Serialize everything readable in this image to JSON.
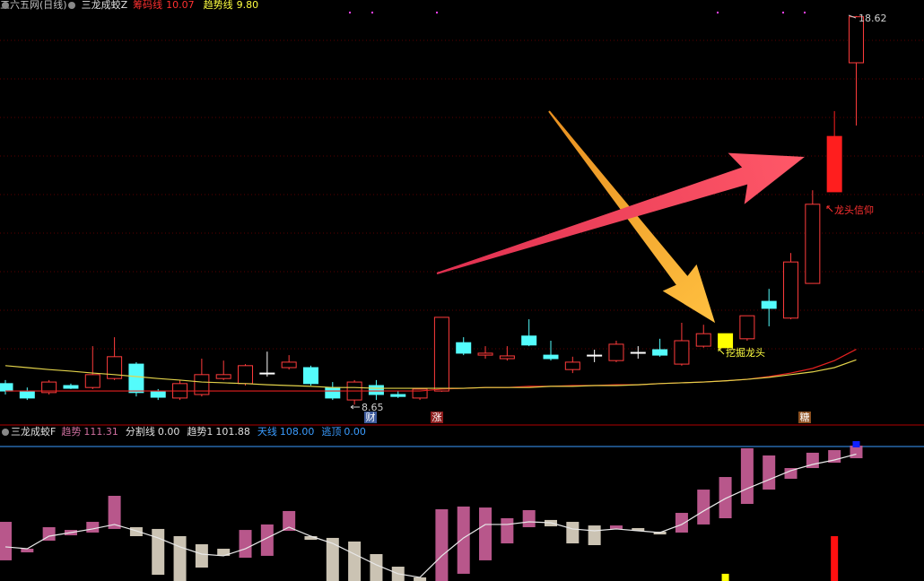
{
  "header": {
    "title": "三六五网(日线)",
    "indicator": "三龙成蛟Z"
  },
  "chart_data": [
    {
      "type": "candlestick",
      "open": [
        9.19,
        9.0,
        8.96,
        9.14,
        9.09,
        9.32,
        9.69,
        8.98,
        8.82,
        8.91,
        9.32,
        9.19,
        9.46,
        9.6,
        9.6,
        9.09,
        8.77,
        9.14,
        8.91,
        8.82,
        9.0,
        10.24,
        9.92,
        9.83,
        10.41,
        9.92,
        9.55,
        9.92,
        9.78,
        9.99,
        10.06,
        9.69,
        10.15,
        10.11,
        10.34,
        11.3,
        10.87,
        11.76,
        14.11,
        17.42
      ],
      "high": [
        9.28,
        9.09,
        9.28,
        9.19,
        10.15,
        10.38,
        9.74,
        9.05,
        9.28,
        9.83,
        9.78,
        9.69,
        10.01,
        9.92,
        9.65,
        9.23,
        9.28,
        9.28,
        9.0,
        9.07,
        10.89,
        10.38,
        10.15,
        10.15,
        10.84,
        10.29,
        9.88,
        10.06,
        10.29,
        10.15,
        10.34,
        10.75,
        10.7,
        10.47,
        10.93,
        11.62,
        12.54,
        14.15,
        16.18,
        18.62
      ],
      "low": [
        8.91,
        8.77,
        8.91,
        9.05,
        9.05,
        9.28,
        8.86,
        8.77,
        8.77,
        8.86,
        9.28,
        9.14,
        9.37,
        9.55,
        9.14,
        8.77,
        8.65,
        8.77,
        8.82,
        8.77,
        8.98,
        9.92,
        9.83,
        9.78,
        10.15,
        9.78,
        9.46,
        9.74,
        9.74,
        9.83,
        9.88,
        9.65,
        10.11,
        10.11,
        10.29,
        10.66,
        10.84,
        11.76,
        14.11,
        15.81
      ],
      "close": [
        9.0,
        8.82,
        9.23,
        9.07,
        9.42,
        9.88,
        8.96,
        8.84,
        9.19,
        9.42,
        9.42,
        9.65,
        9.46,
        9.74,
        9.19,
        8.82,
        9.23,
        8.91,
        8.86,
        9.05,
        10.89,
        9.97,
        9.97,
        9.9,
        10.18,
        9.83,
        9.74,
        9.92,
        10.2,
        9.99,
        9.92,
        10.29,
        10.47,
        10.47,
        10.93,
        11.12,
        12.31,
        13.79,
        15.53,
        18.6
      ],
      "up_color": "#ff3c3c",
      "down_color": "#54fcfc",
      "flat_color": "#ffffff",
      "highlights": [
        {
          "index": 33,
          "color": "#ffff00"
        },
        {
          "index": 38,
          "color": "#ff1e1e"
        }
      ],
      "series": [
        {
          "name": "筹码线",
          "color": "#e42020",
          "values": [
            9.0,
            9.0,
            9.0,
            9.0,
            9.0,
            9.0,
            9.0,
            9.0,
            9.0,
            9.0,
            9.0,
            9.0,
            9.0,
            9.0,
            9.0,
            9.0,
            9.0,
            9.0,
            9.0,
            9.0,
            9.05,
            9.07,
            9.09,
            9.09,
            9.12,
            9.12,
            9.14,
            9.14,
            9.16,
            9.16,
            9.19,
            9.21,
            9.23,
            9.26,
            9.3,
            9.37,
            9.46,
            9.58,
            9.78,
            10.07
          ]
        },
        {
          "name": "趋势线",
          "color": "#e2d24a",
          "values": [
            9.65,
            9.6,
            9.55,
            9.51,
            9.46,
            9.42,
            9.37,
            9.32,
            9.28,
            9.23,
            9.21,
            9.19,
            9.16,
            9.14,
            9.12,
            9.09,
            9.09,
            9.07,
            9.07,
            9.07,
            9.07,
            9.07,
            9.09,
            9.09,
            9.09,
            9.12,
            9.12,
            9.14,
            9.14,
            9.16,
            9.19,
            9.21,
            9.23,
            9.26,
            9.3,
            9.35,
            9.42,
            9.49,
            9.6,
            9.8
          ]
        }
      ],
      "legend": [
        {
          "name": "筹码线",
          "value": 10.07,
          "color": "#ff3030"
        },
        {
          "name": "趋势线",
          "value": 9.8,
          "label": "9.80",
          "color": "#ffff40"
        }
      ],
      "ylim": [
        8.22,
        19.03
      ],
      "annotations": [
        "18.62",
        "8.65",
        "挖掘龙头",
        "龙头信仰"
      ],
      "markers": [
        "财",
        "涨",
        "糖"
      ]
    },
    {
      "type": "bar",
      "title": "三龙成蛟F",
      "bars": {
        "high": [
          47.5,
          25.9,
          43.2,
          41.0,
          47.5,
          68.4,
          43.2,
          41.8,
          36.0,
          29.5,
          25.9,
          41.0,
          45.4,
          56.2,
          36.0,
          34.6,
          31.7,
          21.6,
          11.5,
          2.9,
          57.6,
          59.8,
          59.0,
          50.4,
          56.9,
          49.0,
          47.5,
          44.6,
          44.6,
          42.5,
          39.6,
          54.7,
          73.4,
          83.5,
          106.6,
          100.8,
          90.7,
          103.0,
          105.1,
          108.7
        ],
        "low": [
          16.6,
          23.0,
          32.4,
          36.7,
          38.9,
          41.8,
          36.0,
          5.0,
          0,
          10.8,
          20.2,
          18.7,
          20.2,
          40.3,
          33.1,
          0,
          0,
          0,
          0,
          0,
          0,
          5.8,
          16.6,
          30.2,
          43.2,
          43.9,
          30.2,
          28.8,
          41.8,
          40.3,
          37.4,
          38.9,
          45.4,
          50.4,
          61.9,
          73.4,
          82.1,
          90.7,
          95.0,
          98.6
        ],
        "colors": [
          "#b8578b",
          "#b8578b",
          "#b8578b",
          "#b8578b",
          "#b8578b",
          "#b8578b",
          "#cbc3b3",
          "#cbc3b3",
          "#cbc3b3",
          "#cbc3b3",
          "#cbc3b3",
          "#b8578b",
          "#b8578b",
          "#b8578b",
          "#cbc3b3",
          "#cbc3b3",
          "#cbc3b3",
          "#cbc3b3",
          "#cbc3b3",
          "#cbc3b3",
          "#b8578b",
          "#b8578b",
          "#b8578b",
          "#b8578b",
          "#b8578b",
          "#cbc3b3",
          "#cbc3b3",
          "#cbc3b3",
          "#b8578b",
          "#cbc3b3",
          "#cbc3b3",
          "#b8578b",
          "#b8578b",
          "#b8578b",
          "#b8578b",
          "#b8578b",
          "#b8578b",
          "#b8578b",
          "#b8578b",
          "#b8578b"
        ]
      },
      "series": [
        {
          "name": "趋势1",
          "color": "#e8e8e8",
          "values": [
            27.4,
            25.9,
            36.0,
            38.9,
            41.8,
            45.4,
            40.3,
            34.6,
            27.4,
            21.6,
            20.2,
            25.9,
            34.6,
            43.2,
            36.0,
            30.2,
            21.6,
            13.0,
            5.8,
            2.9,
            20.2,
            34.6,
            45.4,
            45.4,
            47.5,
            46.8,
            41.8,
            40.3,
            41.8,
            40.3,
            38.9,
            45.4,
            56.2,
            66.2,
            74.2,
            81.4,
            88.6,
            93.6,
            97.2,
            101.88
          ]
        }
      ],
      "legend": [
        {
          "name": "趋势",
          "value": 111.31,
          "color": "#d070a0"
        },
        {
          "name": "分割线",
          "value": 0,
          "label": "0.00",
          "color": "#e0e0e0"
        },
        {
          "name": "趋势1",
          "value": 101.88,
          "color": "#e0e0e0"
        },
        {
          "name": "天线",
          "value": 108,
          "label": "108.00",
          "color": "#3a9cff"
        },
        {
          "name": "逃顶",
          "value": 0,
          "label": "0.00",
          "color": "#3a9cff"
        }
      ],
      "signals": [
        {
          "index": 33,
          "low": 0,
          "high": 5.8,
          "color": "#ffff00"
        },
        {
          "index": 38,
          "low": 0,
          "high": 36.0,
          "color": "#ff1010"
        },
        {
          "index": 39,
          "low": 107.3,
          "high": 112.3,
          "color": "#1020ff"
        }
      ],
      "ylim": [
        0,
        122.4
      ]
    }
  ]
}
